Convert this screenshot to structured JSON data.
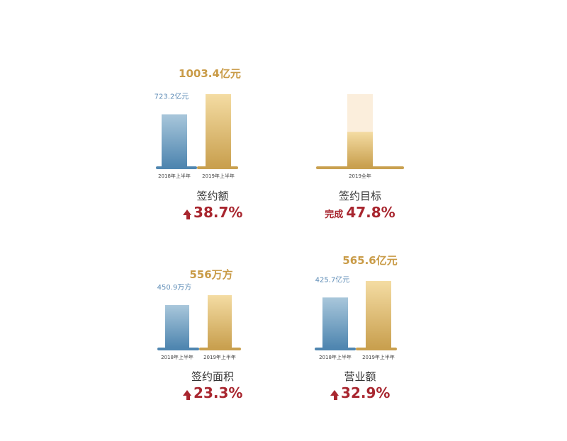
{
  "colors": {
    "blue_top": "#a9c7db",
    "blue_bottom": "#4f86b0",
    "gold_top": "#f4dca3",
    "gold_bottom": "#c9a04f",
    "gold_light": "#fbeedc",
    "gold_text": "#c99b47",
    "blue_text": "#5f8db7",
    "red": "#a8262f"
  },
  "panels": [
    {
      "title": "签约额",
      "growth_prefix": "",
      "growth": "38.7%",
      "arrow": true
    },
    {
      "title": "签约目标",
      "growth_prefix": "完成",
      "growth": "47.8%",
      "arrow": false
    },
    {
      "title": "签约面积",
      "growth_prefix": "",
      "growth": "23.3%",
      "arrow": true
    },
    {
      "title": "营业额",
      "growth_prefix": "",
      "growth": "32.9%",
      "arrow": true
    }
  ],
  "chart_data": [
    {
      "type": "bar",
      "categories": [
        "2018年上半年",
        "2019年上半年"
      ],
      "values": [
        723.2,
        1003.4
      ],
      "value_labels": [
        "723.2亿元",
        "1003.4亿元"
      ],
      "unit": "亿元",
      "ylim": [
        0,
        1003.4
      ]
    },
    {
      "type": "bar",
      "categories": [
        "2019全年"
      ],
      "values": [
        47.8
      ],
      "target": 100,
      "unit": "%",
      "ylim": [
        0,
        100
      ]
    },
    {
      "type": "bar",
      "categories": [
        "2018年上半年",
        "2019年上半年"
      ],
      "values": [
        450.9,
        556
      ],
      "value_labels": [
        "450.9万方",
        "556万方"
      ],
      "unit": "万方",
      "ylim": [
        0,
        556
      ]
    },
    {
      "type": "bar",
      "categories": [
        "2018年上半年",
        "2019年上半年"
      ],
      "values": [
        425.7,
        565.6
      ],
      "value_labels": [
        "425.7亿元",
        "565.6亿元"
      ],
      "unit": "亿元",
      "ylim": [
        0,
        565.6
      ]
    }
  ]
}
